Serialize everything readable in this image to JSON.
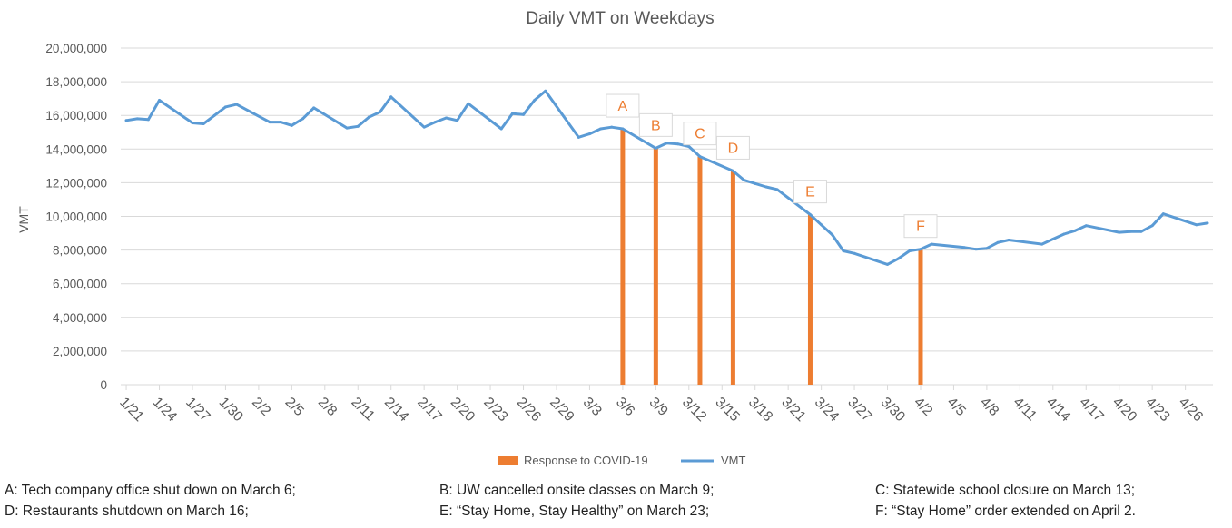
{
  "chart_data": {
    "type": "line",
    "title": "Daily VMT on Weekdays",
    "xlabel": "",
    "ylabel": "VMT",
    "ylim": [
      0,
      20000000
    ],
    "yticks": [
      0,
      2000000,
      4000000,
      6000000,
      8000000,
      10000000,
      12000000,
      14000000,
      16000000,
      18000000,
      20000000
    ],
    "ytick_labels": [
      "0",
      "2,000,000",
      "4,000,000",
      "6,000,000",
      "8,000,000",
      "10,000,000",
      "12,000,000",
      "14,000,000",
      "16,000,000",
      "18,000,000",
      "20,000,000"
    ],
    "xtick_labels": [
      "1/21",
      "1/24",
      "1/27",
      "1/30",
      "2/2",
      "2/5",
      "2/8",
      "2/11",
      "2/14",
      "2/17",
      "2/20",
      "2/23",
      "2/26",
      "2/29",
      "3/3",
      "3/6",
      "3/9",
      "3/12",
      "3/15",
      "3/18",
      "3/21",
      "3/24",
      "3/27",
      "3/30",
      "4/2",
      "4/5",
      "4/8",
      "4/11",
      "4/14",
      "4/17",
      "4/20",
      "4/23",
      "4/26"
    ],
    "grid": true,
    "legend_position": "bottom",
    "series": [
      {
        "name": "VMT",
        "type": "line",
        "color": "#5b9bd5",
        "points": [
          [
            "1/21",
            15700000
          ],
          [
            "1/22",
            15800000
          ],
          [
            "1/23",
            15750000
          ],
          [
            "1/24",
            16900000
          ],
          [
            "1/27",
            15550000
          ],
          [
            "1/28",
            15500000
          ],
          [
            "1/29",
            16000000
          ],
          [
            "1/30",
            16500000
          ],
          [
            "1/31",
            16650000
          ],
          [
            "2/3",
            15600000
          ],
          [
            "2/4",
            15600000
          ],
          [
            "2/5",
            15400000
          ],
          [
            "2/6",
            15800000
          ],
          [
            "2/7",
            16450000
          ],
          [
            "2/10",
            15250000
          ],
          [
            "2/11",
            15350000
          ],
          [
            "2/12",
            15900000
          ],
          [
            "2/13",
            16200000
          ],
          [
            "2/14",
            17100000
          ],
          [
            "2/17",
            15300000
          ],
          [
            "2/18",
            15600000
          ],
          [
            "2/19",
            15850000
          ],
          [
            "2/20",
            15700000
          ],
          [
            "2/21",
            16700000
          ],
          [
            "2/24",
            15200000
          ],
          [
            "2/25",
            16100000
          ],
          [
            "2/26",
            16050000
          ],
          [
            "2/27",
            16900000
          ],
          [
            "2/28",
            17450000
          ],
          [
            "3/2",
            14700000
          ],
          [
            "3/3",
            14900000
          ],
          [
            "3/4",
            15200000
          ],
          [
            "3/5",
            15300000
          ],
          [
            "3/6",
            15200000
          ],
          [
            "3/9",
            14050000
          ],
          [
            "3/10",
            14350000
          ],
          [
            "3/11",
            14300000
          ],
          [
            "3/12",
            14150000
          ],
          [
            "3/13",
            13550000
          ],
          [
            "3/16",
            12700000
          ],
          [
            "3/17",
            12150000
          ],
          [
            "3/18",
            11950000
          ],
          [
            "3/19",
            11750000
          ],
          [
            "3/20",
            11600000
          ],
          [
            "3/23",
            10100000
          ],
          [
            "3/24",
            9500000
          ],
          [
            "3/25",
            8900000
          ],
          [
            "3/26",
            7950000
          ],
          [
            "3/27",
            7800000
          ],
          [
            "3/30",
            7150000
          ],
          [
            "3/31",
            7500000
          ],
          [
            "4/1",
            7950000
          ],
          [
            "4/2",
            8050000
          ],
          [
            "4/3",
            8350000
          ],
          [
            "4/6",
            8150000
          ],
          [
            "4/7",
            8050000
          ],
          [
            "4/8",
            8100000
          ],
          [
            "4/9",
            8450000
          ],
          [
            "4/10",
            8600000
          ],
          [
            "4/13",
            8350000
          ],
          [
            "4/14",
            8650000
          ],
          [
            "4/15",
            8950000
          ],
          [
            "4/16",
            9150000
          ],
          [
            "4/17",
            9450000
          ],
          [
            "4/20",
            9050000
          ],
          [
            "4/21",
            9100000
          ],
          [
            "4/22",
            9100000
          ],
          [
            "4/23",
            9450000
          ],
          [
            "4/24",
            10150000
          ],
          [
            "4/27",
            9500000
          ],
          [
            "4/28",
            9600000
          ]
        ]
      },
      {
        "name": "Response to COVID-19",
        "type": "bar",
        "color": "#ed7d31",
        "points": [
          [
            "3/6",
            15200000
          ],
          [
            "3/9",
            14050000
          ],
          [
            "3/13",
            13550000
          ],
          [
            "3/16",
            12700000
          ],
          [
            "3/23",
            10100000
          ],
          [
            "4/2",
            8050000
          ]
        ]
      }
    ],
    "annotations": [
      {
        "label": "A",
        "date": "3/6"
      },
      {
        "label": "B",
        "date": "3/9"
      },
      {
        "label": "C",
        "date": "3/13"
      },
      {
        "label": "D",
        "date": "3/16"
      },
      {
        "label": "E",
        "date": "3/23"
      },
      {
        "label": "F",
        "date": "4/2"
      }
    ],
    "x_start": "1/21",
    "x_end": "4/28"
  },
  "notes": [
    "A: Tech company office shut down on March 6;",
    "B: UW cancelled onsite classes on March 9;",
    "C: Statewide school closure on March 13;",
    "D: Restaurants shutdown on March 16;",
    "E: “Stay Home, Stay Healthy” on March 23;",
    "F: “Stay Home” order extended on April 2."
  ],
  "colors": {
    "vmt_line": "#5b9bd5",
    "response_bar": "#ed7d31",
    "gridline": "#d9d9d9",
    "text": "#595959"
  }
}
